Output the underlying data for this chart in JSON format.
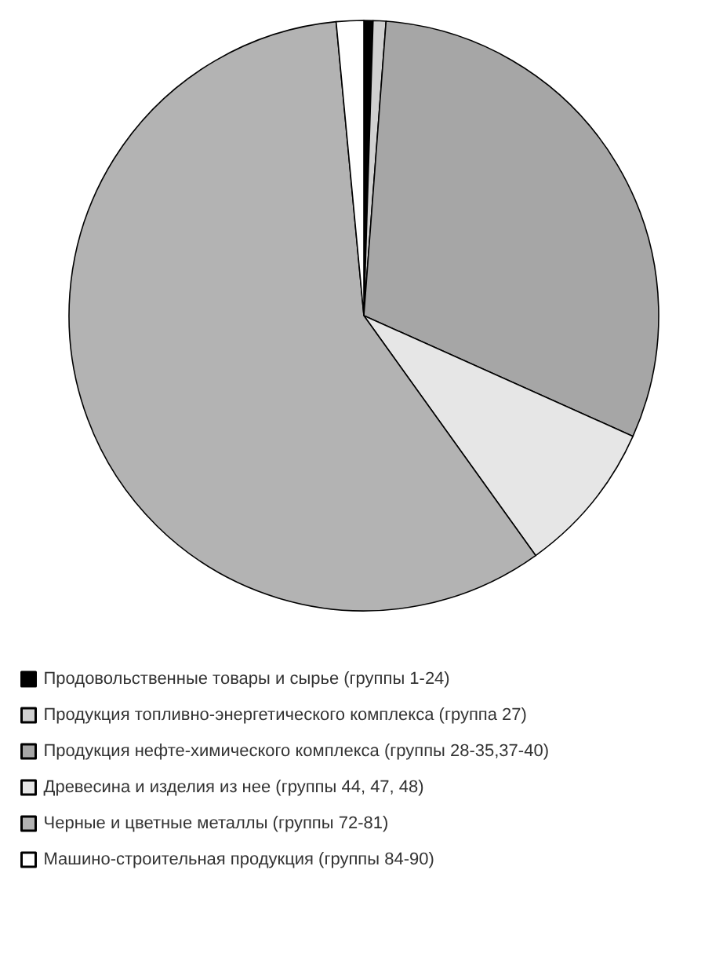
{
  "chart_data": {
    "type": "pie",
    "categories": [
      "Продовольственные товары и сырье (группы 1-24)",
      "Продукция топливно-энергетического комплекса (группа 27)",
      "Продукция нефте-химического комплекса (группы 28-35,37-40)",
      "Древесина и изделия из нее (группы 44, 47, 48)",
      "Черные и цветные металлы (группы 72-81)",
      "Машино-строительная продукция (группы 84-90)"
    ],
    "values": [
      0.5,
      0.7,
      30.5,
      8.4,
      58.4,
      1.5
    ],
    "colors": [
      "#000000",
      "#d0d0d0",
      "#a6a6a6",
      "#e6e6e6",
      "#b3b3b3",
      "#ffffff"
    ],
    "legend": "bottom"
  }
}
